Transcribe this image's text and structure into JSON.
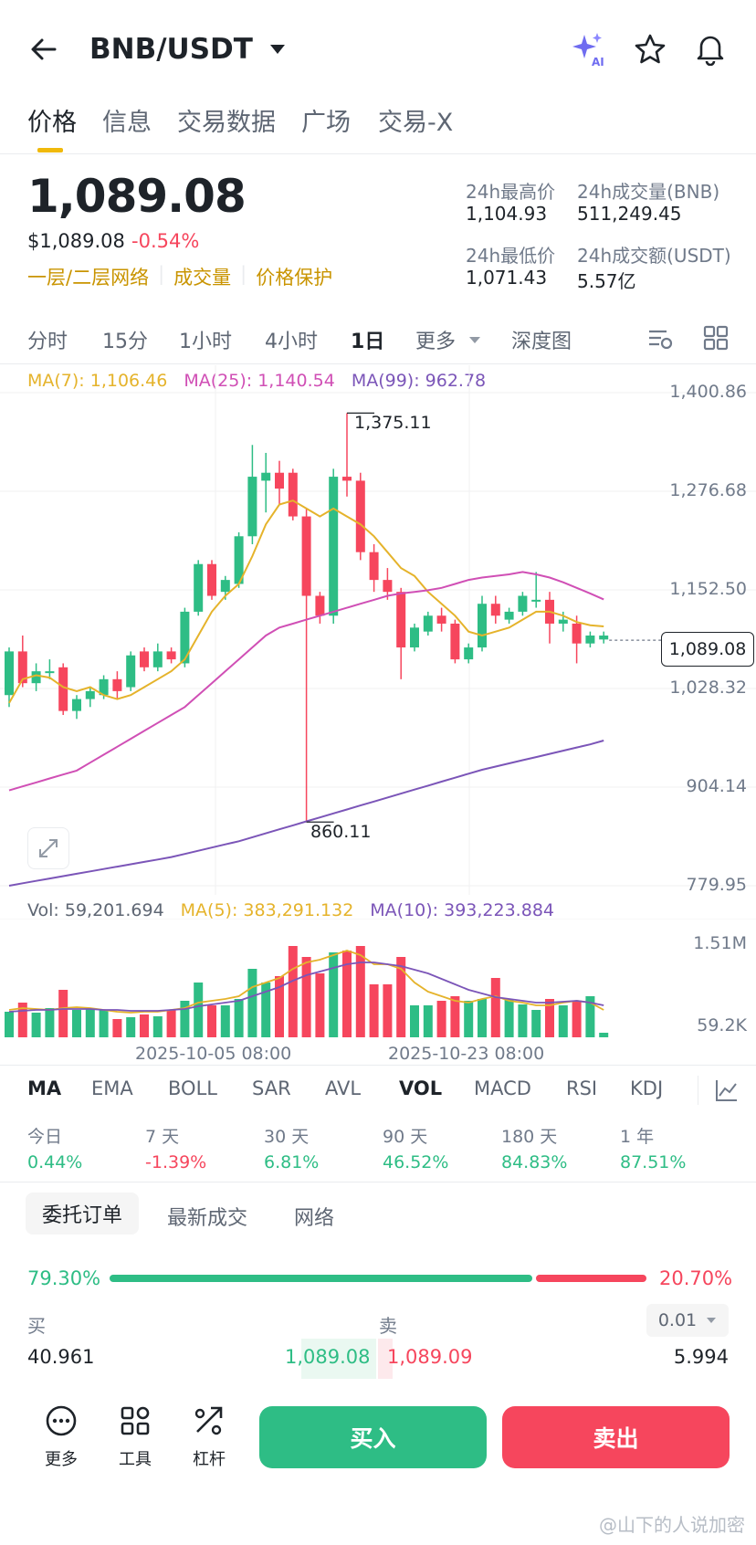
{
  "header": {
    "pair": "BNB/USDT"
  },
  "tabs": [
    "价格",
    "信息",
    "交易数据",
    "广场",
    "交易-X"
  ],
  "price": {
    "last": "1,089.08",
    "usd": "$1,089.08",
    "change": "-0.54%",
    "tags": [
      "一层/二层网络",
      "成交量",
      "价格保护"
    ]
  },
  "stats": {
    "high_label": "24h最高价",
    "high": "1,104.93",
    "vol_label": "24h成交量(BNB)",
    "vol": "511,249.45",
    "low_label": "24h最低价",
    "low": "1,071.43",
    "amt_label": "24h成交额(USDT)",
    "amt": "5.57亿"
  },
  "timeframes": [
    "分时",
    "15分",
    "1小时",
    "4小时",
    "1日",
    "更多",
    "深度图"
  ],
  "ma_legend": {
    "ma7": "MA(7): 1,106.46",
    "ma25": "MA(25): 1,140.54",
    "ma99": "MA(99): 962.78"
  },
  "vol_legend": {
    "vol": "Vol: 59,201.694",
    "ma5": "MA(5): 383,291.132",
    "ma10": "MA(10): 393,223.884"
  },
  "colors": {
    "up": "#2ebd85",
    "down": "#f6465d",
    "ma7": "#e5b32b",
    "ma25": "#d04fb5",
    "ma99": "#7b55b8",
    "accent": "#f0b90b"
  },
  "chart_data": {
    "type": "candlestick",
    "price_axis": [
      "1,400.86",
      "1,276.68",
      "1,152.50",
      "1,028.32",
      "904.14",
      "779.95"
    ],
    "current_price": "1,089.08",
    "high_marker": "1,375.11",
    "low_marker": "860.11",
    "volume_axis": [
      "1.51M",
      "59.2K"
    ],
    "x_labels": [
      "2025-10-05 08:00",
      "2025-10-23 08:00"
    ],
    "ylim": [
      779.95,
      1400.86
    ],
    "candles": [
      [
        1020,
        1075,
        1005,
        1080
      ],
      [
        1075,
        1035,
        1030,
        1095
      ],
      [
        1035,
        1050,
        1025,
        1060
      ],
      [
        1050,
        1050,
        1040,
        1065
      ],
      [
        1055,
        1000,
        995,
        1060
      ],
      [
        1000,
        1015,
        990,
        1020
      ],
      [
        1015,
        1025,
        1005,
        1030
      ],
      [
        1020,
        1040,
        1015,
        1045
      ],
      [
        1040,
        1025,
        1015,
        1050
      ],
      [
        1030,
        1070,
        1025,
        1075
      ],
      [
        1075,
        1055,
        1050,
        1080
      ],
      [
        1055,
        1075,
        1050,
        1085
      ],
      [
        1075,
        1065,
        1060,
        1080
      ],
      [
        1060,
        1125,
        1055,
        1130
      ],
      [
        1125,
        1185,
        1120,
        1190
      ],
      [
        1185,
        1145,
        1140,
        1190
      ],
      [
        1150,
        1165,
        1140,
        1170
      ],
      [
        1160,
        1220,
        1155,
        1225
      ],
      [
        1220,
        1295,
        1210,
        1335
      ],
      [
        1290,
        1300,
        1250,
        1325
      ],
      [
        1300,
        1280,
        1260,
        1315
      ],
      [
        1300,
        1245,
        1240,
        1305
      ],
      [
        1245,
        1145,
        860.11,
        1255
      ],
      [
        1145,
        1120,
        1110,
        1150
      ],
      [
        1120,
        1295,
        1110,
        1305
      ],
      [
        1295,
        1290,
        1270,
        1375.11
      ],
      [
        1290,
        1200,
        1190,
        1300
      ],
      [
        1200,
        1165,
        1150,
        1210
      ],
      [
        1165,
        1150,
        1140,
        1180
      ],
      [
        1150,
        1080,
        1040,
        1155
      ],
      [
        1080,
        1105,
        1075,
        1110
      ],
      [
        1100,
        1120,
        1095,
        1125
      ],
      [
        1120,
        1110,
        1100,
        1130
      ],
      [
        1110,
        1065,
        1060,
        1115
      ],
      [
        1065,
        1080,
        1060,
        1085
      ],
      [
        1080,
        1135,
        1075,
        1145
      ],
      [
        1135,
        1120,
        1110,
        1145
      ],
      [
        1115,
        1125,
        1110,
        1130
      ],
      [
        1125,
        1145,
        1120,
        1150
      ],
      [
        1140,
        1140,
        1130,
        1175
      ],
      [
        1140,
        1110,
        1085,
        1150
      ],
      [
        1110,
        1115,
        1100,
        1125
      ],
      [
        1110,
        1085,
        1060,
        1120
      ],
      [
        1085,
        1095,
        1080,
        1100
      ],
      [
        1090,
        1095,
        1085,
        1100
      ]
    ],
    "volumes": [
      0.28,
      0.38,
      0.27,
      0.32,
      0.52,
      0.3,
      0.32,
      0.3,
      0.2,
      0.22,
      0.25,
      0.23,
      0.3,
      0.4,
      0.6,
      0.35,
      0.35,
      0.42,
      0.75,
      0.6,
      0.67,
      1.0,
      0.88,
      0.7,
      0.93,
      0.95,
      1.0,
      0.58,
      0.58,
      0.88,
      0.35,
      0.35,
      0.4,
      0.45,
      0.4,
      0.42,
      0.65,
      0.42,
      0.36,
      0.3,
      0.42,
      0.35,
      0.4,
      0.45,
      0.05
    ],
    "ma7": [
      1010,
      1040,
      1045,
      1042,
      1030,
      1025,
      1030,
      1020,
      1015,
      1020,
      1030,
      1040,
      1050,
      1065,
      1095,
      1125,
      1145,
      1160,
      1195,
      1235,
      1260,
      1265,
      1255,
      1245,
      1255,
      1245,
      1235,
      1220,
      1200,
      1180,
      1170,
      1150,
      1135,
      1120,
      1100,
      1095,
      1100,
      1105,
      1115,
      1125,
      1125,
      1120,
      1112,
      1108,
      1106.46
    ],
    "ma25": [
      900,
      905,
      910,
      915,
      920,
      925,
      935,
      945,
      955,
      965,
      975,
      985,
      995,
      1005,
      1020,
      1035,
      1050,
      1065,
      1080,
      1095,
      1105,
      1110,
      1115,
      1120,
      1125,
      1130,
      1135,
      1140,
      1145,
      1148,
      1150,
      1152,
      1155,
      1160,
      1165,
      1168,
      1170,
      1172,
      1175,
      1172,
      1168,
      1162,
      1155,
      1148,
      1140.54
    ],
    "ma99": [
      780,
      783,
      786,
      789,
      792,
      795,
      798,
      801,
      804,
      807,
      810,
      813,
      816,
      820,
      824,
      828,
      832,
      836,
      841,
      846,
      851,
      856,
      861,
      866,
      871,
      876,
      881,
      886,
      891,
      896,
      901,
      906,
      911,
      916,
      921,
      926,
      930,
      934,
      938,
      942,
      946,
      950,
      954,
      958,
      962.78
    ],
    "vol_ma5": [
      0.3,
      0.32,
      0.31,
      0.3,
      0.32,
      0.33,
      0.32,
      0.3,
      0.28,
      0.27,
      0.28,
      0.28,
      0.3,
      0.32,
      0.38,
      0.4,
      0.42,
      0.45,
      0.55,
      0.6,
      0.65,
      0.75,
      0.82,
      0.85,
      0.9,
      0.95,
      0.9,
      0.8,
      0.8,
      0.75,
      0.6,
      0.5,
      0.45,
      0.4,
      0.38,
      0.42,
      0.45,
      0.4,
      0.38,
      0.35,
      0.35,
      0.38,
      0.4,
      0.38,
      0.3
    ],
    "vol_ma10": [
      0.28,
      0.29,
      0.3,
      0.3,
      0.31,
      0.31,
      0.31,
      0.3,
      0.3,
      0.29,
      0.29,
      0.29,
      0.3,
      0.31,
      0.34,
      0.36,
      0.38,
      0.4,
      0.45,
      0.5,
      0.55,
      0.62,
      0.68,
      0.72,
      0.76,
      0.8,
      0.82,
      0.82,
      0.8,
      0.78,
      0.74,
      0.7,
      0.64,
      0.58,
      0.52,
      0.48,
      0.44,
      0.42,
      0.4,
      0.38,
      0.38,
      0.39,
      0.4,
      0.38,
      0.35
    ]
  },
  "indicators": [
    "MA",
    "EMA",
    "BOLL",
    "SAR",
    "AVL",
    "VOL",
    "MACD",
    "RSI",
    "KDJ"
  ],
  "periods": [
    {
      "label": "今日",
      "value": "0.44%",
      "dir": "up"
    },
    {
      "label": "7 天",
      "value": "-1.39%",
      "dir": "down"
    },
    {
      "label": "30 天",
      "value": "6.81%",
      "dir": "up"
    },
    {
      "label": "90 天",
      "value": "46.52%",
      "dir": "up"
    },
    {
      "label": "180 天",
      "value": "84.83%",
      "dir": "up"
    },
    {
      "label": "1 年",
      "value": "87.51%",
      "dir": "up"
    }
  ],
  "book_tabs": [
    "委托订单",
    "最新成交",
    "网络"
  ],
  "order_book": {
    "buy_pct": "79.30%",
    "buy_ratio": 0.793,
    "sell_pct": "20.70%",
    "buy_label": "买",
    "sell_label": "卖",
    "precision": "0.01",
    "row1": {
      "bid_qty": "40.961",
      "bid": "1,089.08",
      "ask": "1,089.09",
      "ask_qty": "5.994"
    }
  },
  "bottom": {
    "more": "更多",
    "tools": "工具",
    "lever": "杠杆",
    "buy": "买入",
    "sell": "卖出"
  },
  "watermark": "@山下的人说加密"
}
